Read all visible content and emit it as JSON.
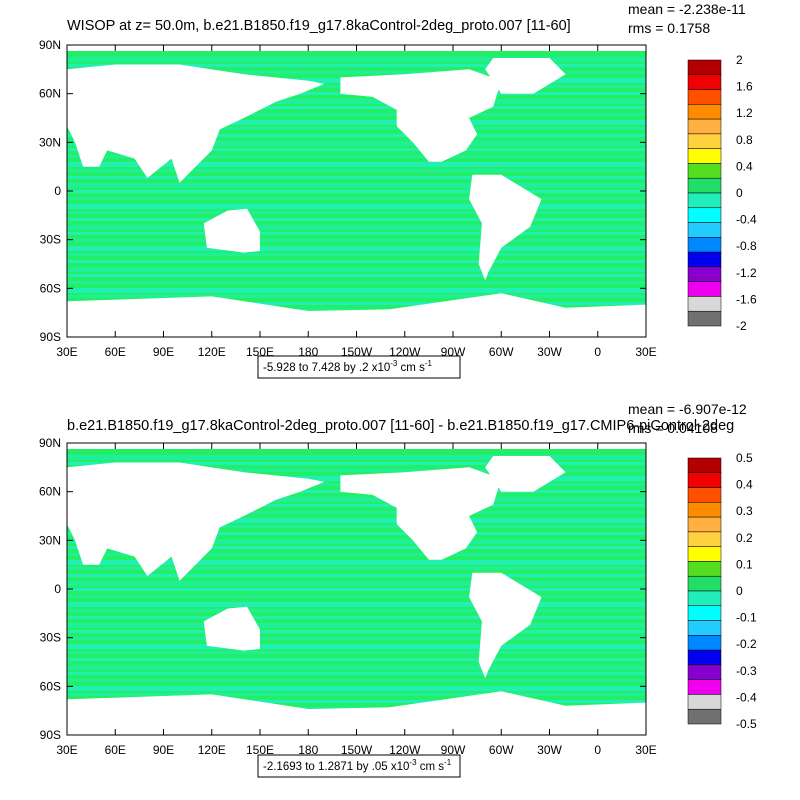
{
  "panels": [
    {
      "title": "WISOP at z=  50.0m, b.e21.B1850.f19_g17.8kaControl-2deg_proto.007 [11-60]",
      "mean": "mean = -2.238e-11",
      "rms": "rms = 0.1758",
      "range_text": "-5.928 to 7.428 by .2 x10",
      "range_exp": "-3",
      "range_units": " cm s",
      "range_units_exp": "-1",
      "colorbar_labels": [
        "2",
        "1.6",
        "1.2",
        "0.8",
        "0.4",
        "0",
        "-0.4",
        "-0.8",
        "-1.2",
        "-1.6",
        "-2"
      ]
    },
    {
      "title": "b.e21.B1850.f19_g17.8kaControl-2deg_proto.007 [11-60] - b.e21.B1850.f19_g17.CMIP6-piControl-2deg",
      "mean": "mean = -6.907e-12",
      "rms": "rms = 0.04108",
      "range_text": "-2.1693 to 1.2871 by .05 x10",
      "range_exp": "-3",
      "range_units": " cm s",
      "range_units_exp": "-1",
      "colorbar_labels": [
        "0.5",
        "0.4",
        "0.3",
        "0.2",
        "0.1",
        "0",
        "-0.1",
        "-0.2",
        "-0.3",
        "-0.4",
        "-0.5"
      ]
    }
  ],
  "axes": {
    "x_ticks": [
      "30E",
      "60E",
      "90E",
      "120E",
      "150E",
      "180",
      "150W",
      "120W",
      "90W",
      "60W",
      "30W",
      "0",
      "30E"
    ],
    "y_ticks": [
      "90N",
      "60N",
      "30N",
      "0",
      "30S",
      "60S",
      "90S"
    ]
  },
  "colorbar_colors": [
    "#b40000",
    "#f00000",
    "#ff5000",
    "#ff8c00",
    "#ffb040",
    "#ffd040",
    "#ffff00",
    "#55dd22",
    "#22dd66",
    "#22eebb",
    "#00ffff",
    "#22ccff",
    "#0088ff",
    "#0000ee",
    "#8800cc",
    "#ee00ee",
    "#d8d8d8",
    "#707070"
  ],
  "map_colors": {
    "land": "#ffffff",
    "ocean_a": "#22ee66",
    "ocean_b": "#22eebb"
  }
}
